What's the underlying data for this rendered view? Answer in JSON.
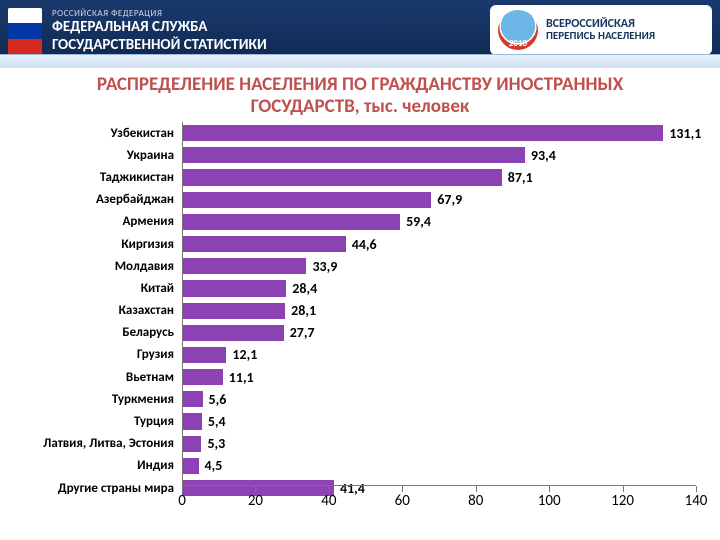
{
  "header": {
    "line1": "РОССИЙСКАЯ ФЕДЕРАЦИЯ",
    "line2a": "ФЕДЕРАЛЬНАЯ СЛУЖБА",
    "line2b": "ГОСУДАРСТВЕННОЙ СТАТИСТИКИ",
    "badge": {
      "line1": "ВСЕРОССИЙСКАЯ",
      "line2": "ПЕРЕПИСЬ НАСЕЛЕНИЯ",
      "year": "2010"
    },
    "bg_from": "#1a3a6e",
    "bg_to": "#0f2850"
  },
  "title": {
    "line1": "РАСПРЕДЕЛЕНИЕ НАСЕЛЕНИЯ ПО ГРАЖДАНСТВУ ИНОСТРАННЫХ",
    "line2": "ГОСУДАРСТВ, тыс. человек",
    "color": "#c0504d"
  },
  "chart": {
    "type": "bar-horizontal",
    "xmin": 0,
    "xmax": 140,
    "xtick_step": 20,
    "bar_color": "#8d42b3",
    "axis_color": "#777777",
    "label_fontsize": 13,
    "value_fontsize": 14,
    "tick_fontsize": 15,
    "background_color": "#ffffff",
    "categories": [
      "Узбекистан",
      "Украина",
      "Таджикистан",
      "Азербайджан",
      "Армения",
      "Киргизия",
      "Молдавия",
      "Китай",
      "Казахстан",
      "Беларусь",
      "Грузия",
      "Вьетнам",
      "Туркмения",
      "Турция",
      "Латвия, Литва, Эстония",
      "Индия",
      "Другие страны мира"
    ],
    "values": [
      131.1,
      93.4,
      87.1,
      67.9,
      59.4,
      44.6,
      33.9,
      28.4,
      28.1,
      27.7,
      12.1,
      11.1,
      5.6,
      5.4,
      5.3,
      4.5,
      41.4
    ],
    "value_labels": [
      "131,1",
      "93,4",
      "87,1",
      "67,9",
      "59,4",
      "44,6",
      "33,9",
      "28,4",
      "28,1",
      "27,7",
      "12,1",
      "11,1",
      "5,6",
      "5,4",
      "5,3",
      "4,5",
      "41,4"
    ]
  }
}
